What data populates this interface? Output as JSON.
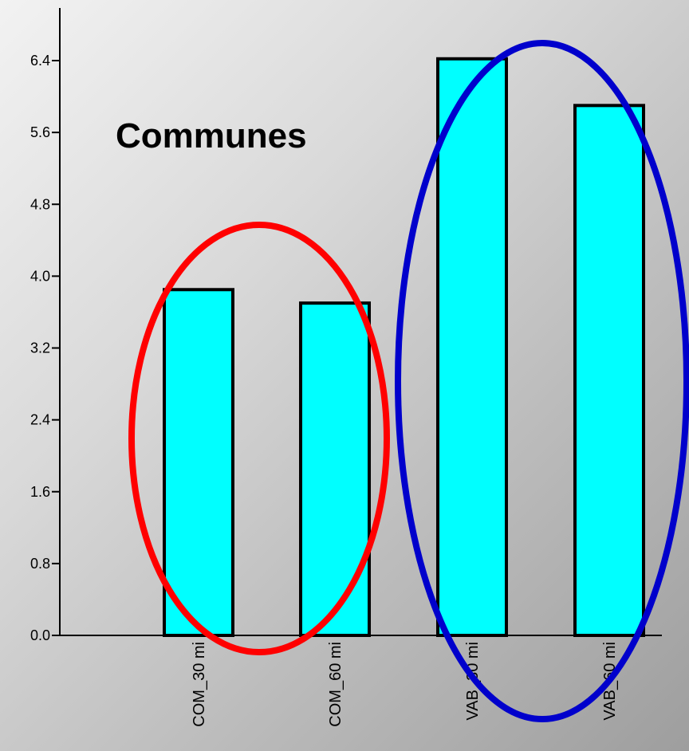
{
  "chart_data": {
    "type": "bar",
    "title": "Communes",
    "categories": [
      "COM_30 mi",
      "COM_60 mi",
      "VAB_30 mi",
      "VAB_60 mi"
    ],
    "values": [
      3.85,
      3.7,
      6.42,
      5.9
    ],
    "yticks": [
      "0.0",
      "0.8",
      "1.6",
      "2.4",
      "3.2",
      "4.0",
      "4.8",
      "5.6",
      "6.4"
    ],
    "ylim": [
      0,
      7.0
    ],
    "bar_color": "#00ffff",
    "grid": false,
    "annotations": [
      {
        "shape": "ellipse",
        "color": "#ff0000",
        "encloses": [
          "COM_30 mi",
          "COM_60 mi"
        ]
      },
      {
        "shape": "ellipse",
        "color": "#0000cc",
        "encloses": [
          "VAB_30 mi",
          "VAB_60 mi"
        ]
      }
    ]
  }
}
